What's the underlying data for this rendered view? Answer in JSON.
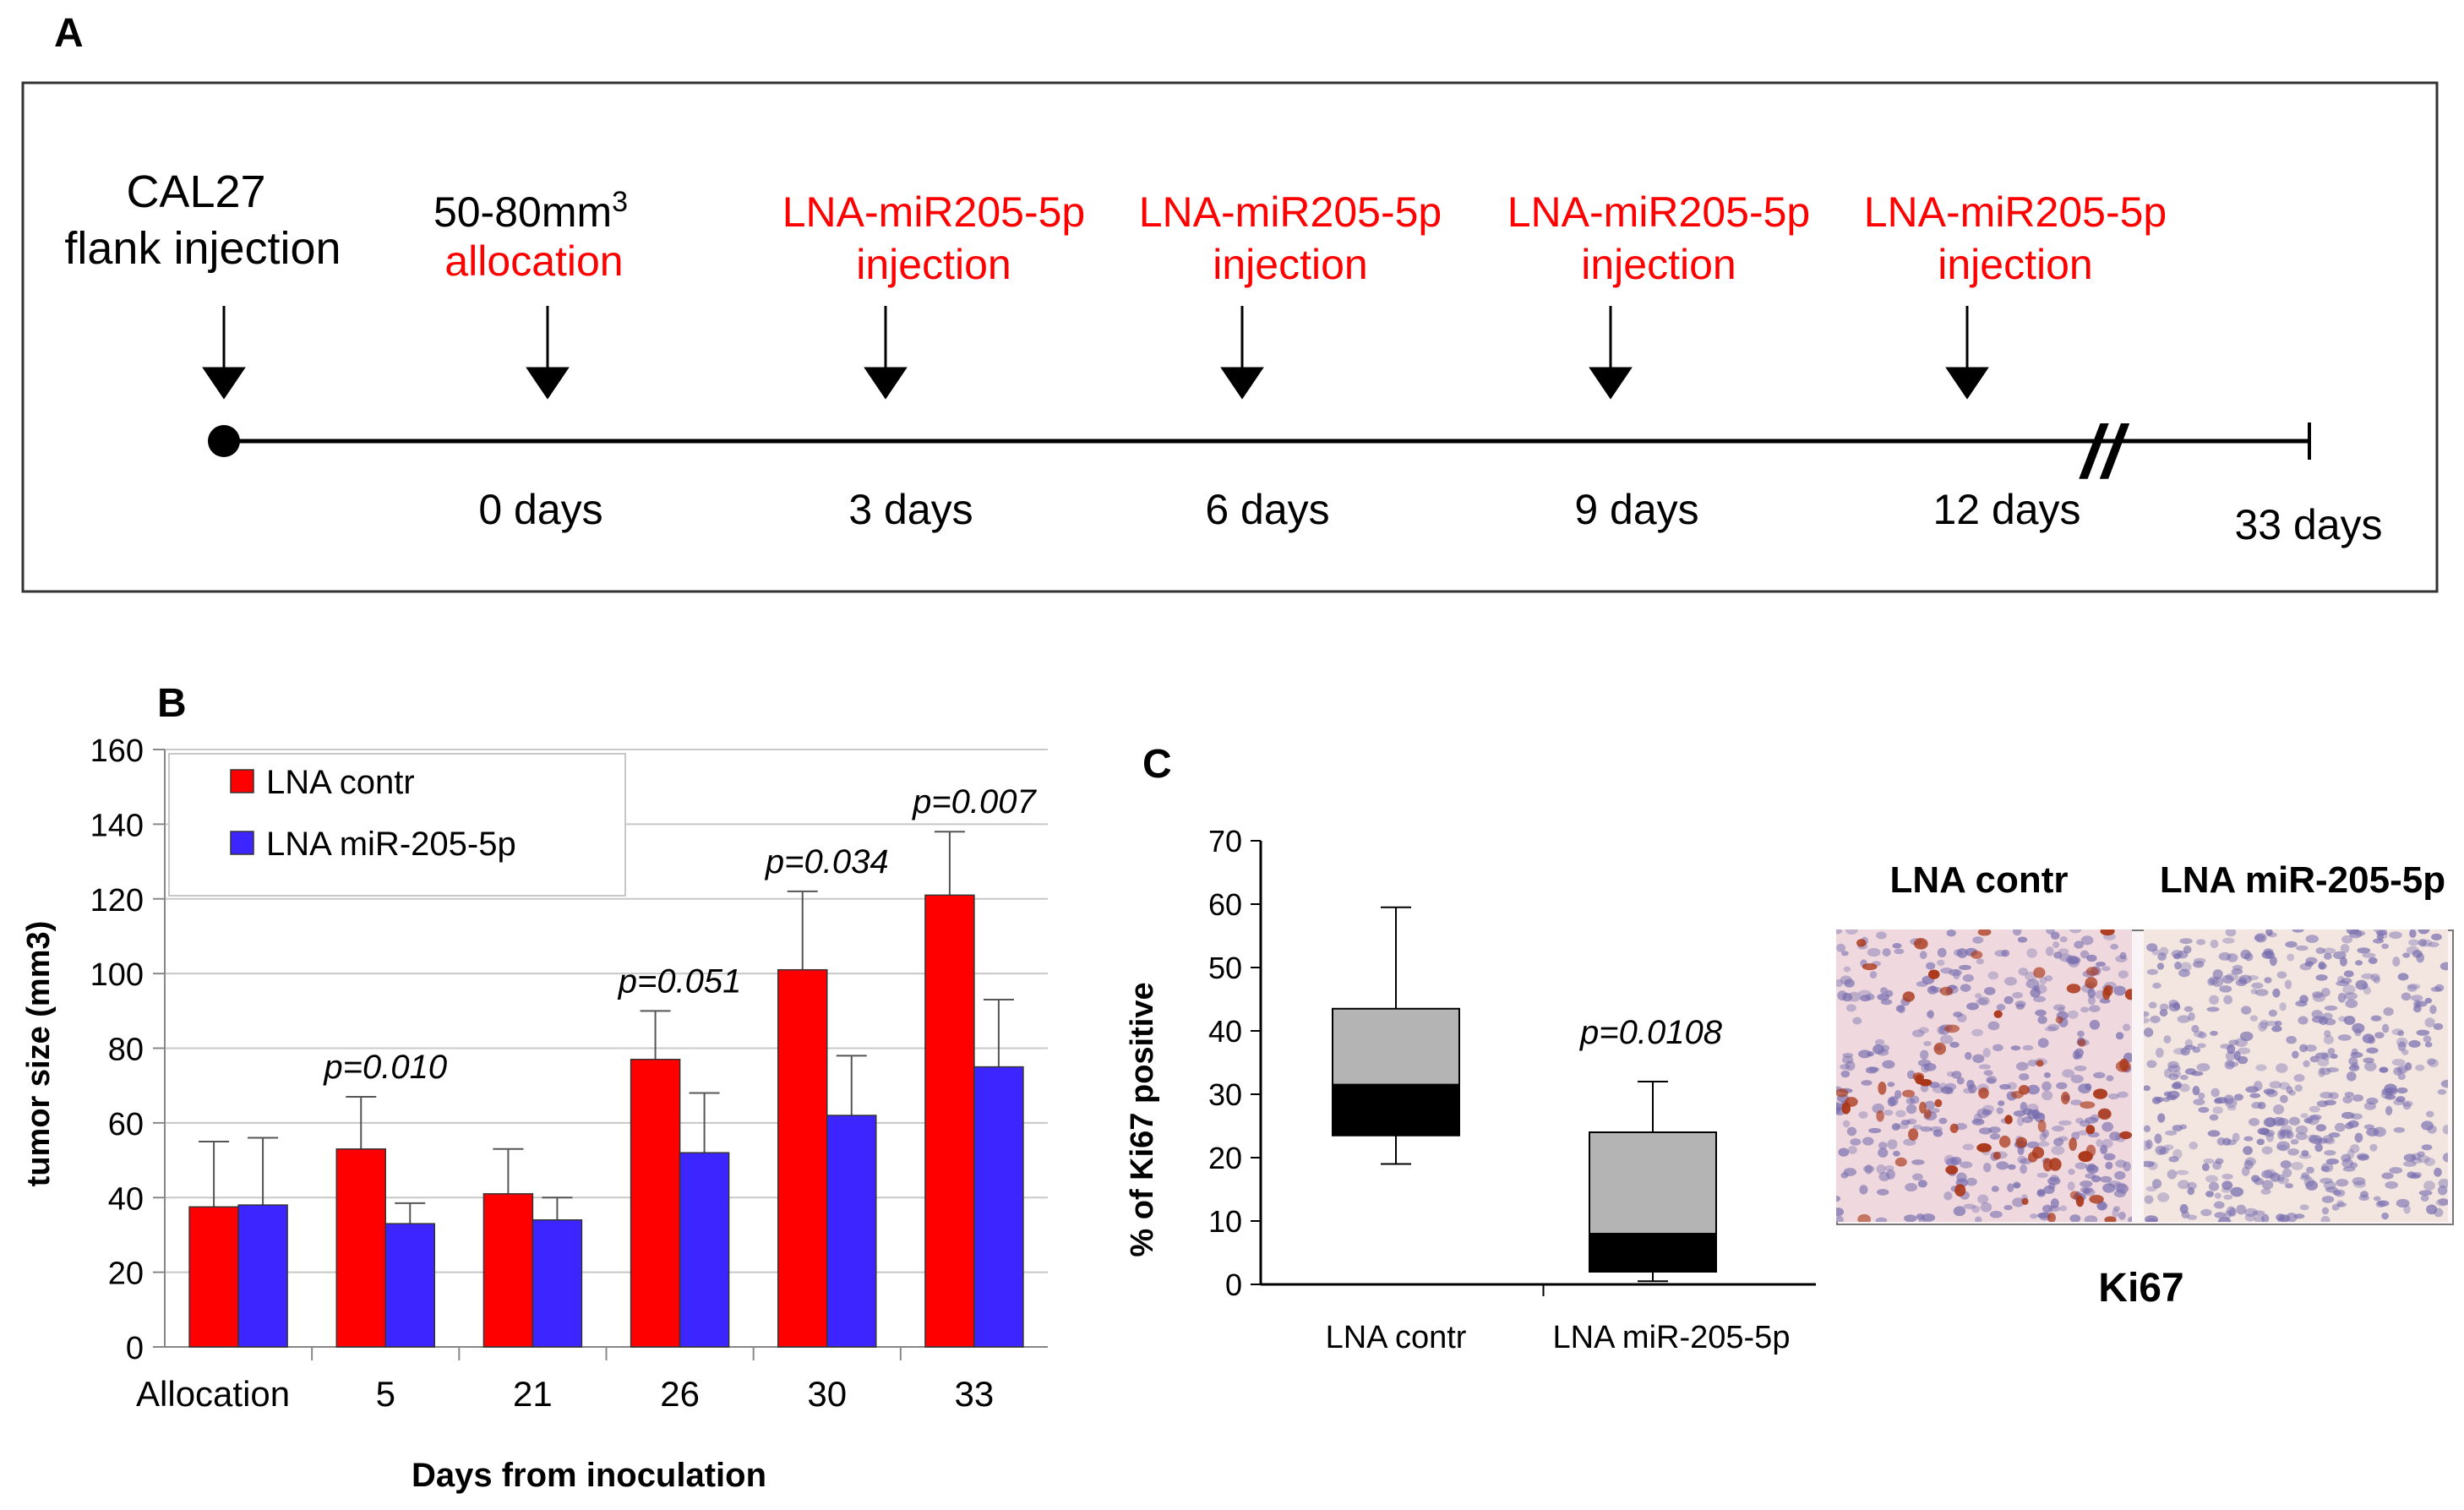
{
  "panel_a": {
    "label": "A",
    "start_event": [
      "CAL27",
      "flank injection"
    ],
    "allocation": {
      "line1": "50-80mm",
      "sup": "3",
      "line2": "allocation"
    },
    "injection_events": [
      {
        "line1": "LNA-miR205-5p",
        "line2": "injection"
      },
      {
        "line1": "LNA-miR205-5p",
        "line2": "injection"
      },
      {
        "line1": "LNA-miR205-5p",
        "line2": "injection"
      },
      {
        "line1": "LNA-miR205-5p",
        "line2": "injection"
      }
    ],
    "day_labels": [
      "0 days",
      "3 days",
      "6 days",
      "9 days",
      "12 days",
      "33 days"
    ],
    "break_mark": "//",
    "colors": {
      "timeline": "#000000",
      "treatment_text": "#ff0000"
    }
  },
  "chart_data": [
    {
      "panel": "B",
      "type": "bar",
      "categories": [
        "Allocation",
        "5",
        "21",
        "26",
        "30",
        "33"
      ],
      "series": [
        {
          "name": "LNA contr",
          "color": "#ff0000",
          "values": [
            37.5,
            53,
            41,
            77,
            101,
            121
          ],
          "error": [
            17.5,
            14,
            12,
            13,
            21,
            17
          ]
        },
        {
          "name": "LNA miR-205-5p",
          "color": "#3d25ff",
          "values": [
            38,
            33,
            34,
            52,
            62,
            75
          ],
          "error": [
            18,
            5.5,
            6,
            16,
            16,
            18
          ]
        }
      ],
      "p_values": [
        "",
        "p=0.010",
        "",
        "p=0.051",
        "p=0.034",
        "p=0.007"
      ],
      "xlabel": "Days from inoculation",
      "ylabel": "tumor size (mm3)",
      "ylim": [
        0,
        160
      ],
      "yticks": [
        0,
        20,
        40,
        60,
        80,
        100,
        120,
        140,
        160
      ],
      "grid": true,
      "legend": "top-left"
    },
    {
      "panel": "C",
      "type": "box",
      "categories": [
        "LNA contr",
        "LNA miR-205-5p"
      ],
      "boxes": [
        {
          "whisker_low": 19,
          "q1": 23.5,
          "median": 31.5,
          "q3": 43.5,
          "whisker_high": 59.5
        },
        {
          "whisker_low": 0.5,
          "q1": 2,
          "median": 8,
          "q3": 24,
          "whisker_high": 32
        }
      ],
      "p_value": "p=0.0108",
      "ylabel": "% of Ki67 positive",
      "ylim": [
        0,
        70
      ],
      "yticks": [
        0,
        10,
        20,
        30,
        40,
        50,
        60,
        70
      ],
      "colors": {
        "upper_box": "#b4b4b4",
        "lower_box": "#000000"
      }
    }
  ],
  "panel_c_images": {
    "left_title": "LNA contr",
    "right_title": "LNA miR-205-5p",
    "caption": "Ki67"
  }
}
